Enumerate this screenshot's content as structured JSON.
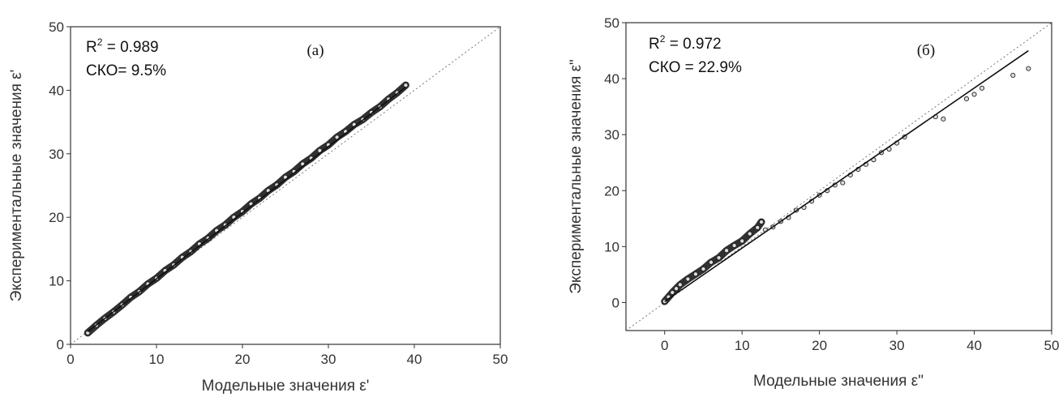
{
  "chart_data": [
    {
      "type": "scatter",
      "panel_label": "(а)",
      "xlabel": "Модельные значения ε'",
      "ylabel": "Экспериментальные значения ε'",
      "xlim": [
        0,
        50
      ],
      "ylim": [
        0,
        50
      ],
      "xticks": [
        "0",
        "10",
        "20",
        "30",
        "40",
        "50"
      ],
      "yticks": [
        "0",
        "10",
        "20",
        "30",
        "40",
        "50"
      ],
      "r2_label": "R",
      "r2_sup": "2",
      "r2_value": " = 0.989",
      "rmse_text": "СКО= 9.5%",
      "reference_line": "y = x (dotted)",
      "fit_line": {
        "x": [
          2,
          39
        ],
        "y": [
          2,
          40.5
        ]
      },
      "grid": false,
      "series": [
        {
          "x": [
            2,
            3,
            4,
            5,
            6,
            7,
            8,
            9,
            10,
            11,
            12,
            13,
            14,
            15,
            16,
            17,
            18,
            19,
            20,
            21,
            22,
            23,
            24,
            25,
            26,
            27,
            28,
            29,
            30,
            31,
            32,
            33,
            34,
            35,
            36,
            37,
            38,
            39
          ],
          "y": [
            1.8,
            3.0,
            4.1,
            5.1,
            6.2,
            7.4,
            8.3,
            9.5,
            10.4,
            11.6,
            12.5,
            13.7,
            14.6,
            15.8,
            16.7,
            17.9,
            18.8,
            20.0,
            20.9,
            22.1,
            23.0,
            24.2,
            25.1,
            26.3,
            27.2,
            28.4,
            29.3,
            30.5,
            31.4,
            32.6,
            33.5,
            34.6,
            35.4,
            36.5,
            37.4,
            38.6,
            39.6,
            40.8
          ]
        }
      ]
    },
    {
      "type": "scatter",
      "panel_label": "(б)",
      "xlabel": "Модельные значения ε\"",
      "ylabel": "Экспериментальные значения ε\"",
      "xlim": [
        -5,
        50
      ],
      "ylim": [
        -5,
        50
      ],
      "xticks": [
        "0",
        "10",
        "20",
        "30",
        "40",
        "50"
      ],
      "yticks": [
        "0",
        "10",
        "20",
        "30",
        "40",
        "50"
      ],
      "r2_label": "R",
      "r2_sup": "2",
      "r2_value": " = 0.972",
      "rmse_text": "СКО = 22.9%",
      "reference_line": "y = x (dotted)",
      "fit_line": {
        "x": [
          0,
          47
        ],
        "y": [
          0.2,
          45
        ]
      },
      "grid": false,
      "series": [
        {
          "x": [
            0,
            0.5,
            1,
            1.5,
            2,
            3,
            4,
            5,
            6,
            7,
            8,
            9,
            10,
            11,
            12,
            12.5,
            13,
            14,
            15,
            16,
            17,
            18,
            19,
            20,
            21,
            22,
            23,
            24,
            25,
            26,
            27,
            28,
            29,
            30,
            31,
            35,
            36,
            39,
            40,
            41,
            45,
            47
          ],
          "y": [
            0.2,
            1,
            1.8,
            2.5,
            3.2,
            4.2,
            5.1,
            6,
            7.2,
            8,
            9.3,
            10.2,
            11,
            12.3,
            13.4,
            14.4,
            13,
            13.5,
            14.5,
            15.2,
            16.5,
            17,
            18.1,
            19.2,
            20,
            21,
            21.4,
            22.8,
            23.8,
            24.7,
            25.5,
            26.8,
            27.4,
            28.5,
            29.6,
            33.2,
            32.8,
            36.4,
            37.2,
            38.3,
            40.6,
            41.8
          ]
        }
      ]
    }
  ]
}
